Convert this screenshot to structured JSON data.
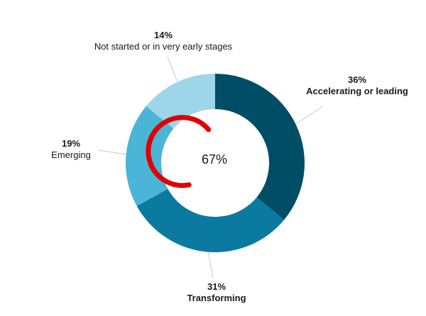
{
  "chart_data": {
    "type": "pie",
    "categories": [
      "Accelerating or leading",
      "Transforming",
      "Emerging",
      "Not started or in very early stages"
    ],
    "values": [
      36,
      31,
      19,
      14
    ],
    "value_labels": [
      "36%",
      "31%",
      "19%",
      "14%"
    ],
    "colors": [
      "#004d66",
      "#0b7aa0",
      "#4ab5d6",
      "#9fd5e8"
    ],
    "center": {
      "text": "67%",
      "gauge_value": 0.67,
      "gauge_color": "#e00000"
    },
    "title": "",
    "legend": "none"
  }
}
